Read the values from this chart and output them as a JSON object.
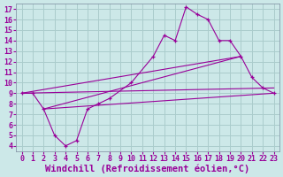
{
  "background_color": "#cce8e8",
  "line_color": "#990099",
  "grid_color": "#aacccc",
  "xlabel": "Windchill (Refroidissement éolien,°C)",
  "xlabel_fontsize": 7.5,
  "tick_fontsize": 6,
  "ylim": [
    3.5,
    17.5
  ],
  "xlim": [
    -0.5,
    23.5
  ],
  "yticks": [
    4,
    5,
    6,
    7,
    8,
    9,
    10,
    11,
    12,
    13,
    14,
    15,
    16,
    17
  ],
  "xticks": [
    0,
    1,
    2,
    3,
    4,
    5,
    6,
    7,
    8,
    9,
    10,
    11,
    12,
    13,
    14,
    15,
    16,
    17,
    18,
    19,
    20,
    21,
    22,
    23
  ],
  "jagged_line": {
    "x": [
      0,
      1,
      2,
      3,
      4,
      5,
      6,
      7,
      8,
      10,
      12,
      13,
      14,
      15,
      16,
      17,
      18,
      19,
      20,
      21,
      22,
      23
    ],
    "y": [
      9.0,
      9.0,
      7.5,
      5.0,
      4.0,
      4.5,
      7.5,
      8.0,
      8.5,
      10.0,
      12.5,
      14.5,
      14.0,
      17.2,
      16.5,
      16.0,
      14.0,
      14.0,
      12.5,
      10.5,
      9.5,
      9.0
    ]
  },
  "trend_line1_x": [
    0,
    20
  ],
  "trend_line1_y": [
    9.0,
    12.5
  ],
  "trend_line2_x": [
    0,
    23
  ],
  "trend_line2_y": [
    9.0,
    9.5
  ],
  "trend_line3_x": [
    2,
    20
  ],
  "trend_line3_y": [
    7.5,
    12.5
  ],
  "trend_line4_x": [
    2,
    23
  ],
  "trend_line4_y": [
    7.5,
    9.0
  ]
}
